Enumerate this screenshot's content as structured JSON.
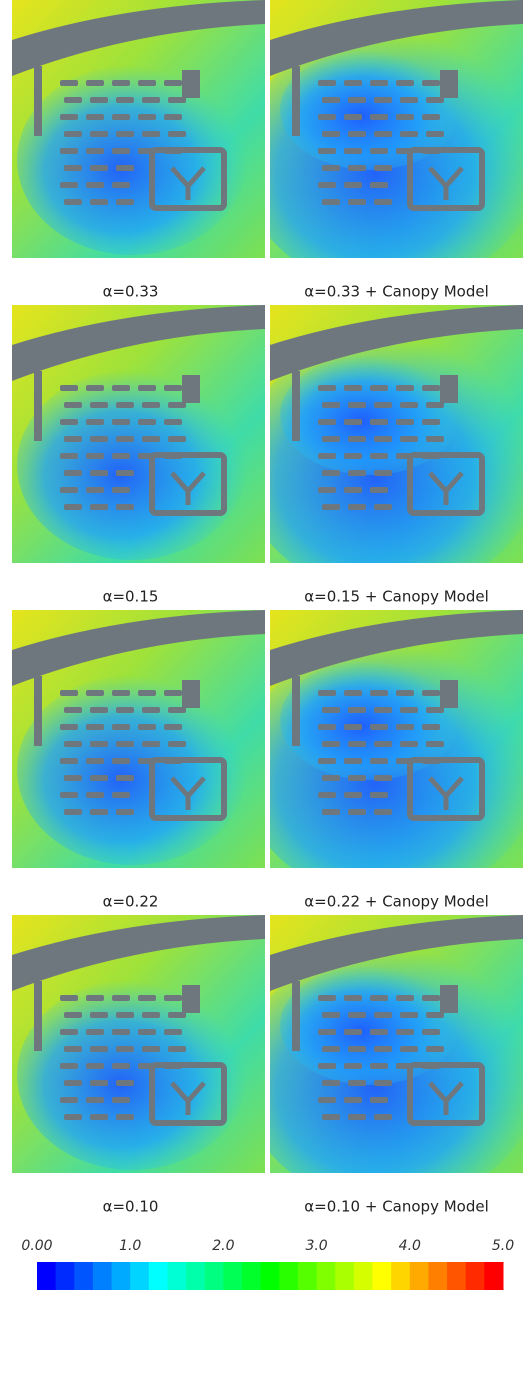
{
  "figure": {
    "panels": [
      {
        "caption": "α=0.33"
      },
      {
        "caption": "α=0.33 + Canopy Model"
      },
      {
        "caption": "α=0.15"
      },
      {
        "caption": "α=0.15 + Canopy Model"
      },
      {
        "caption": "α=0.22"
      },
      {
        "caption": "α=0.22 + Canopy Model"
      },
      {
        "caption": "α=0.10"
      },
      {
        "caption": "α=0.10 + Canopy Model"
      }
    ],
    "colorbar": {
      "ticks": [
        "0.00",
        "1.0",
        "2.0",
        "3.0",
        "4.0",
        "5.0"
      ]
    }
  }
}
